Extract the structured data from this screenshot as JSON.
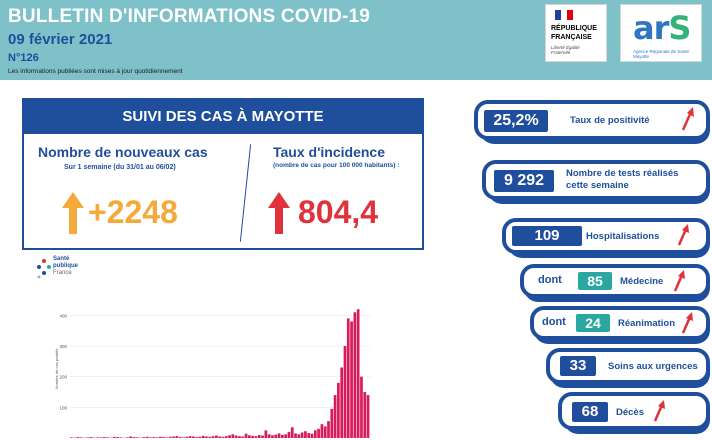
{
  "header": {
    "title": "BULLETIN D'INFORMATIONS COVID-19",
    "date": "09 février 2021",
    "number": "N°126",
    "note": "Les informations publiées sont mises à jour quotidiennement",
    "logo_rf": {
      "line1": "RÉPUBLIQUE",
      "line2": "FRANÇAISE",
      "motto": "Liberté Égalité Fraternité"
    },
    "logo_ars": {
      "text": "arS",
      "sub": "Agence Régionale de Santé Mayotte"
    }
  },
  "panel": {
    "title": "SUIVI DES CAS À MAYOTTE",
    "left": {
      "title": "Nombre de nouveaux cas",
      "subtitle": "Sur 1 semaine (du 31/01 au 06/02)",
      "value": "+2248"
    },
    "right": {
      "title": "Taux d'incidence",
      "subtitle": "(nombre de cas pour 100 000 habitants) :",
      "value": "804,4"
    }
  },
  "source_logo": {
    "line1": "Santé",
    "line2": "publique",
    "line3": "France"
  },
  "indicators": {
    "positivite": {
      "value": "25,2%",
      "label": "Taux de positivité"
    },
    "tests": {
      "value": "9 292",
      "label_line1": "Nombre de tests réalisés",
      "label_line2": "cette semaine"
    },
    "hospitalisations": {
      "value": "109",
      "label": "Hospitalisations"
    },
    "medecine": {
      "prefix": "dont",
      "value": "85",
      "label": "Médecine"
    },
    "reanimation": {
      "prefix": "dont",
      "value": "24",
      "label": "Réanimation"
    },
    "urgences": {
      "value": "33",
      "label": "Soins aux urgences"
    },
    "deces": {
      "value": "68",
      "label": "Décès"
    }
  },
  "colors": {
    "navy": "#1f4e9c",
    "teal_header": "#7fc1c9",
    "orange": "#f4a93a",
    "red": "#e0323a",
    "teal_box": "#2aa7a0",
    "bars": "#d81b5c"
  },
  "chart_data": {
    "type": "bar",
    "ylabel": "Nombre de cas positifs",
    "yticks": [
      "100",
      "200",
      "300",
      "400"
    ],
    "ylim": [
      0,
      450
    ],
    "series": [
      {
        "values": [
          2,
          1,
          3,
          2,
          1,
          2,
          3,
          1,
          2,
          2,
          3,
          2,
          1,
          4,
          3,
          2,
          1,
          2,
          5,
          3,
          2,
          1,
          3,
          4,
          2,
          3,
          2,
          4,
          3,
          2,
          4,
          5,
          6,
          3,
          2,
          4,
          6,
          5,
          3,
          4,
          7,
          5,
          4,
          6,
          8,
          5,
          4,
          6,
          9,
          12,
          8,
          6,
          5,
          14,
          9,
          7,
          6,
          10,
          8,
          25,
          12,
          9,
          11,
          15,
          10,
          12,
          20,
          35,
          15,
          12,
          18,
          22,
          16,
          14,
          25,
          30,
          45,
          38,
          55,
          95,
          140,
          180,
          230,
          300,
          390,
          380,
          410,
          420,
          200,
          150,
          140
        ]
      }
    ]
  }
}
